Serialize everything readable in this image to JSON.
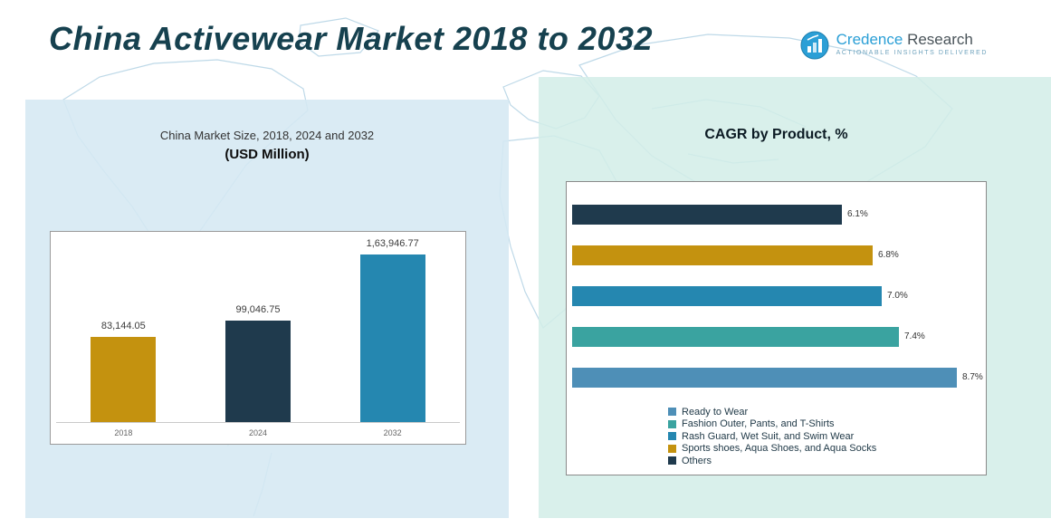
{
  "page": {
    "title": "China Activewear Market 2018 to 2032"
  },
  "logo": {
    "name_primary": "Credence",
    "name_secondary": " Research",
    "tagline": "Actionable Insights Delivered"
  },
  "colors": {
    "gold": "#c4920f",
    "navy": "#1f3a4d",
    "blue": "#2587b0",
    "teal": "#3aa3a0",
    "steel": "#4e8fb7",
    "title_text": "#16414f",
    "panel_left": "#d5e8f3",
    "panel_right": "#d2ede7"
  },
  "chart_data": [
    {
      "type": "bar",
      "orientation": "vertical",
      "title": "China Market Size, 2018, 2024 and 2032",
      "subtitle": "(USD Million)",
      "categories": [
        "2018",
        "2024",
        "2032"
      ],
      "values": [
        83144.05,
        99046.75,
        163946.77
      ],
      "value_labels": [
        "83,144.05",
        "99,046.75",
        "1,63,946.77"
      ],
      "bar_colors": [
        "#c4920f",
        "#1f3a4d",
        "#2587b0"
      ],
      "ylim": [
        0,
        163946.77
      ],
      "grid": false
    },
    {
      "type": "bar",
      "orientation": "horizontal",
      "title": "CAGR by Product, %",
      "categories": [
        "Others",
        "Sports shoes, Aqua Shoes, and Aqua Socks",
        "Rash Guard, Wet Suit, and Swim Wear",
        "Fashion Outer, Pants, and T-Shirts",
        "Ready to Wear"
      ],
      "values": [
        6.1,
        6.8,
        7.0,
        7.4,
        8.7
      ],
      "value_labels": [
        "6.1%",
        "6.8%",
        "7.0%",
        "7.4%",
        "8.7%"
      ],
      "bar_colors": [
        "#1f3a4d",
        "#c4920f",
        "#2587b0",
        "#3aa3a0",
        "#4e8fb7"
      ],
      "xlim": [
        0,
        8.7
      ],
      "grid": false,
      "legend_position": "bottom-left",
      "legend": [
        {
          "label": "Ready to Wear",
          "color": "#4e8fb7"
        },
        {
          "label": "Fashion Outer, Pants, and T-Shirts",
          "color": "#3aa3a0"
        },
        {
          "label": "Rash Guard, Wet Suit, and Swim Wear",
          "color": "#2587b0"
        },
        {
          "label": "Sports shoes, Aqua Shoes, and Aqua Socks",
          "color": "#c4920f"
        },
        {
          "label": "Others",
          "color": "#1f3a4d"
        }
      ]
    }
  ]
}
